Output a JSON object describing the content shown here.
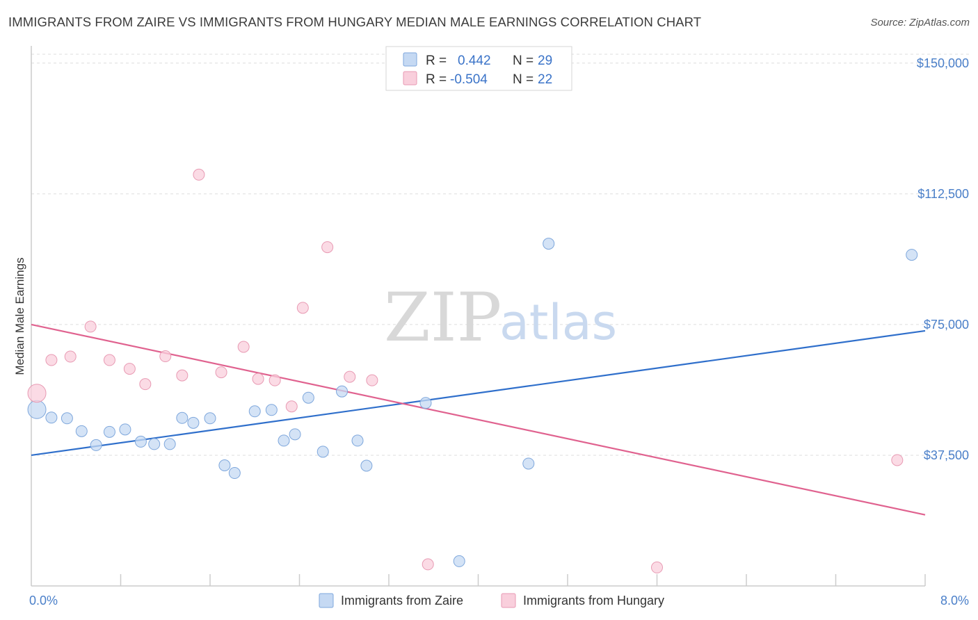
{
  "title": "IMMIGRANTS FROM ZAIRE VS IMMIGRANTS FROM HUNGARY MEDIAN MALE EARNINGS CORRELATION CHART",
  "source": "Source: ZipAtlas.com",
  "watermark": {
    "zip": "ZIP",
    "atlas": "atlas"
  },
  "colors": {
    "zaire_fill": "#c5d9f3",
    "zaire_stroke": "#7ea7dc",
    "zaire_line": "#2f6fcb",
    "hungary_fill": "#f9cfdc",
    "hungary_stroke": "#e89ab3",
    "hungary_line": "#e0628f",
    "axis_text": "#4a7fc9",
    "grid": "#dddddd"
  },
  "legend": {
    "rows": [
      {
        "r_label": "R =",
        "r_value": "0.442",
        "n_label": "N =",
        "n_value": "29"
      },
      {
        "r_label": "R =",
        "r_value": "-0.504",
        "n_label": "N =",
        "n_value": "22"
      }
    ]
  },
  "chart_data": {
    "type": "scatter",
    "title": "IMMIGRANTS FROM ZAIRE VS IMMIGRANTS FROM HUNGARY MEDIAN MALE EARNINGS CORRELATION CHART",
    "xlabel": "",
    "ylabel": "Median Male Earnings",
    "xlim": [
      0,
      8
    ],
    "ylim": [
      0,
      153750
    ],
    "x_tick_labels": [
      "0.0%",
      "8.0%"
    ],
    "y_ticks": [
      {
        "value": 37500,
        "label": "$37,500"
      },
      {
        "value": 75000,
        "label": "$75,000"
      },
      {
        "value": 112500,
        "label": "$112,500"
      },
      {
        "value": 150000,
        "label": "$150,000"
      }
    ],
    "grid": true,
    "legend_position": "bottom",
    "series": [
      {
        "name": "Immigrants from Zaire",
        "trend": {
          "x": [
            0.0,
            8.0
          ],
          "y": [
            37500,
            73200
          ]
        },
        "points": [
          {
            "x": 0.05,
            "y": 50600,
            "big": true
          },
          {
            "x": 0.18,
            "y": 48300
          },
          {
            "x": 0.32,
            "y": 48100
          },
          {
            "x": 0.45,
            "y": 44400
          },
          {
            "x": 0.58,
            "y": 40400
          },
          {
            "x": 0.7,
            "y": 44200
          },
          {
            "x": 0.84,
            "y": 44900
          },
          {
            "x": 0.98,
            "y": 41400
          },
          {
            "x": 1.1,
            "y": 40700
          },
          {
            "x": 1.24,
            "y": 40700
          },
          {
            "x": 1.35,
            "y": 48200
          },
          {
            "x": 1.45,
            "y": 46800
          },
          {
            "x": 1.6,
            "y": 48100
          },
          {
            "x": 1.73,
            "y": 34600
          },
          {
            "x": 1.82,
            "y": 32400
          },
          {
            "x": 2.0,
            "y": 50100
          },
          {
            "x": 2.15,
            "y": 50500
          },
          {
            "x": 2.26,
            "y": 41700
          },
          {
            "x": 2.36,
            "y": 43500
          },
          {
            "x": 2.48,
            "y": 54000
          },
          {
            "x": 2.61,
            "y": 38500
          },
          {
            "x": 2.78,
            "y": 55800
          },
          {
            "x": 2.92,
            "y": 41700
          },
          {
            "x": 3.0,
            "y": 34500
          },
          {
            "x": 3.53,
            "y": 52500
          },
          {
            "x": 3.83,
            "y": 7100
          },
          {
            "x": 4.45,
            "y": 35100
          },
          {
            "x": 4.63,
            "y": 98200
          },
          {
            "x": 7.88,
            "y": 95000
          }
        ]
      },
      {
        "name": "Immigrants from Hungary",
        "trend": {
          "x": [
            0.0,
            8.0
          ],
          "y": [
            75000,
            20400
          ]
        },
        "points": [
          {
            "x": 0.05,
            "y": 55300,
            "big": true
          },
          {
            "x": 0.18,
            "y": 64800
          },
          {
            "x": 0.35,
            "y": 65800
          },
          {
            "x": 0.53,
            "y": 74400
          },
          {
            "x": 0.7,
            "y": 64800
          },
          {
            "x": 0.88,
            "y": 62300
          },
          {
            "x": 1.02,
            "y": 57900
          },
          {
            "x": 1.2,
            "y": 65900
          },
          {
            "x": 1.35,
            "y": 60400
          },
          {
            "x": 1.5,
            "y": 118000
          },
          {
            "x": 1.7,
            "y": 61300
          },
          {
            "x": 1.9,
            "y": 68600
          },
          {
            "x": 2.03,
            "y": 59400
          },
          {
            "x": 2.18,
            "y": 59000
          },
          {
            "x": 2.33,
            "y": 51500
          },
          {
            "x": 2.43,
            "y": 79800
          },
          {
            "x": 2.65,
            "y": 97200
          },
          {
            "x": 2.85,
            "y": 60000
          },
          {
            "x": 3.05,
            "y": 59000
          },
          {
            "x": 3.55,
            "y": 6200
          },
          {
            "x": 5.6,
            "y": 5300
          },
          {
            "x": 7.75,
            "y": 36100
          }
        ]
      }
    ]
  }
}
